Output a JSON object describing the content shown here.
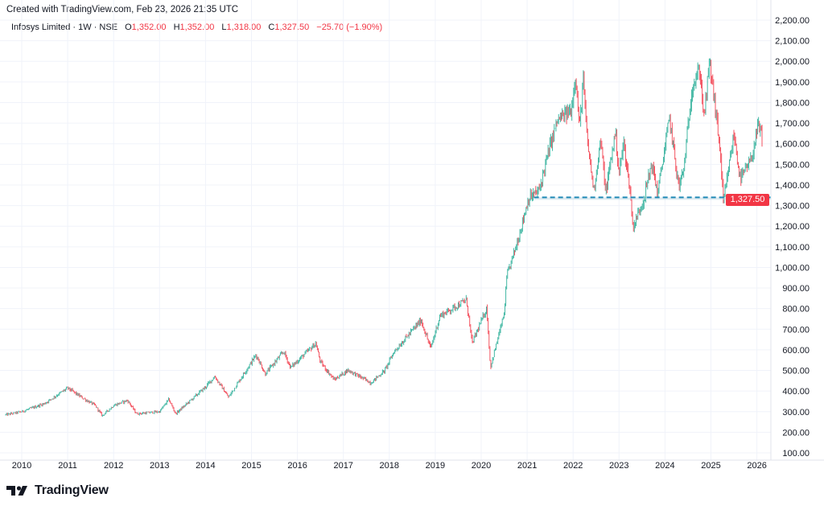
{
  "header": {
    "created_text": "Created with TradingView.com, Feb 23, 2026 21:35 UTC"
  },
  "legend": {
    "symbol": "Infosys Limited · 1W · NSE",
    "open_label": "O",
    "open": "1,352.00",
    "high_label": "H",
    "high": "1,352.00",
    "low_label": "L",
    "low": "1,318.00",
    "close_label": "C",
    "close": "1,327.50",
    "change": "−25.70 (−1.90%)"
  },
  "last_price_label": "1,327.50",
  "brand": {
    "name": "TradingView",
    "logo_text": "17"
  },
  "colors": {
    "up": "#22ab94",
    "down": "#f23645",
    "line": "#1e88b5",
    "grid": "#f0f3fa"
  },
  "chart_data": {
    "type": "candlestick",
    "title": "Infosys Limited · 1W · NSE",
    "interval": "weekly",
    "xlabel": "",
    "ylabel": "",
    "ylim": [
      100,
      2200
    ],
    "xlim": [
      2009.65,
      2026.16
    ],
    "grid": true,
    "y_ticks": [
      "100.00",
      "200.00",
      "300.00",
      "400.00",
      "500.00",
      "600.00",
      "700.00",
      "800.00",
      "900.00",
      "1,000.00",
      "1,100.00",
      "1,200.00",
      "1,300.00",
      "1,400.00",
      "1,500.00",
      "1,600.00",
      "1,700.00",
      "1,800.00",
      "1,900.00",
      "2,000.00",
      "2,100.00",
      "2,200.00"
    ],
    "x_ticks": [
      "2010",
      "2011",
      "2012",
      "2013",
      "2014",
      "2015",
      "2016",
      "2017",
      "2018",
      "2019",
      "2020",
      "2021",
      "2022",
      "2023",
      "2024",
      "2025",
      "2026"
    ],
    "horizontal_line": {
      "price": 1340,
      "from": 2021.15,
      "style": "dashed"
    },
    "last_candle": {
      "open": 1352.0,
      "high": 1352.0,
      "low": 1318.0,
      "close": 1327.5,
      "change": -25.7,
      "change_pct": -1.9
    },
    "approx_close_path": [
      [
        2009.65,
        285
      ],
      [
        2010.0,
        300
      ],
      [
        2010.5,
        340
      ],
      [
        2011.0,
        415
      ],
      [
        2011.3,
        370
      ],
      [
        2011.6,
        330
      ],
      [
        2011.75,
        280
      ],
      [
        2012.0,
        330
      ],
      [
        2012.3,
        355
      ],
      [
        2012.5,
        290
      ],
      [
        2013.0,
        300
      ],
      [
        2013.2,
        360
      ],
      [
        2013.35,
        290
      ],
      [
        2013.6,
        340
      ],
      [
        2014.0,
        420
      ],
      [
        2014.2,
        471
      ],
      [
        2014.5,
        370
      ],
      [
        2015.0,
        541
      ],
      [
        2015.1,
        576
      ],
      [
        2015.3,
        483
      ],
      [
        2015.7,
        592
      ],
      [
        2015.85,
        514
      ],
      [
        2016.4,
        631
      ],
      [
        2016.5,
        541
      ],
      [
        2016.8,
        455
      ],
      [
        2017.1,
        502
      ],
      [
        2017.6,
        440
      ],
      [
        2017.9,
        500
      ],
      [
        2018.1,
        590
      ],
      [
        2018.69,
        744
      ],
      [
        2018.9,
        607
      ],
      [
        2019.1,
        764
      ],
      [
        2019.68,
        842
      ],
      [
        2019.8,
        631
      ],
      [
        2020.12,
        803
      ],
      [
        2020.2,
        514
      ],
      [
        2020.5,
        775
      ],
      [
        2020.56,
        959
      ],
      [
        2020.79,
        1127
      ],
      [
        2021.03,
        1334
      ],
      [
        2021.26,
        1373
      ],
      [
        2021.49,
        1583
      ],
      [
        2021.66,
        1712
      ],
      [
        2021.96,
        1763
      ],
      [
        2022.05,
        1938
      ],
      [
        2022.14,
        1673
      ],
      [
        2022.22,
        1915
      ],
      [
        2022.3,
        1634
      ],
      [
        2022.45,
        1373
      ],
      [
        2022.6,
        1622
      ],
      [
        2022.71,
        1361
      ],
      [
        2022.92,
        1661
      ],
      [
        2023.0,
        1451
      ],
      [
        2023.1,
        1607
      ],
      [
        2023.24,
        1373
      ],
      [
        2023.3,
        1193
      ],
      [
        2023.54,
        1334
      ],
      [
        2023.71,
        1505
      ],
      [
        2023.84,
        1361
      ],
      [
        2024.1,
        1724
      ],
      [
        2024.3,
        1388
      ],
      [
        2024.41,
        1478
      ],
      [
        2024.59,
        1880
      ],
      [
        2024.76,
        1958
      ],
      [
        2024.85,
        1724
      ],
      [
        2024.97,
        1997
      ],
      [
        2025.08,
        1802
      ],
      [
        2025.2,
        1568
      ],
      [
        2025.27,
        1310
      ],
      [
        2025.5,
        1646
      ],
      [
        2025.64,
        1427
      ],
      [
        2025.87,
        1517
      ],
      [
        2026.03,
        1685
      ],
      [
        2026.11,
        1634
      ],
      [
        2026.13,
        1352
      ],
      [
        2026.14,
        1327.5
      ]
    ]
  }
}
